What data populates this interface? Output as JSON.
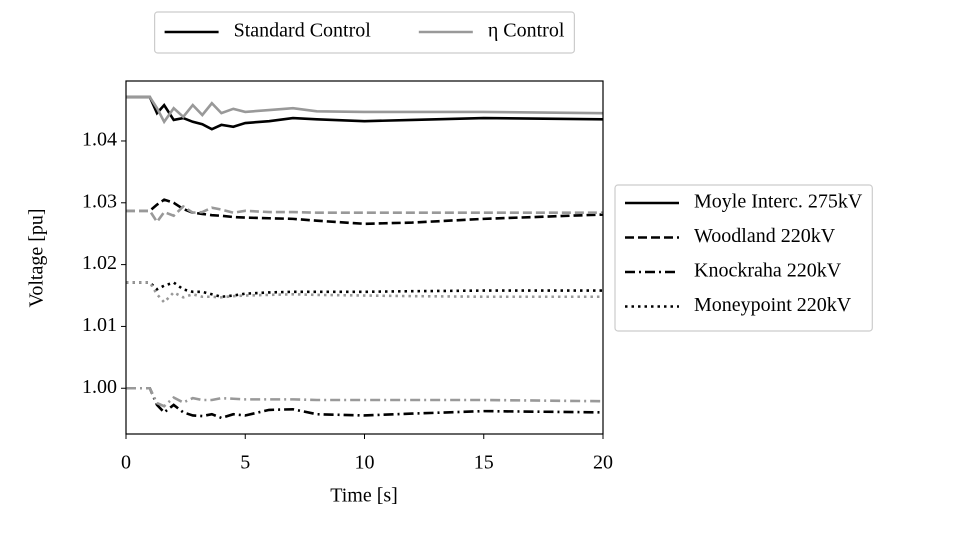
{
  "chart_data": {
    "type": "line",
    "xlabel": "Time [s]",
    "ylabel": "Voltage [pu]",
    "x": [
      0,
      1,
      1.3,
      1.6,
      2.0,
      2.4,
      2.8,
      3.2,
      3.6,
      4.0,
      4.5,
      5,
      6,
      7,
      8,
      10,
      12,
      15,
      20
    ],
    "xlim": [
      0,
      20
    ],
    "xticks": [
      0,
      5,
      10,
      15,
      20
    ],
    "ylim": [
      0.9926,
      1.0497
    ],
    "yticks": [
      {
        "value": 1,
        "label": "1.00"
      },
      1.01,
      1.02,
      1.03,
      1.04
    ],
    "series": [
      {
        "color": "#000000",
        "dash": "solid",
        "values": [
          1.0471,
          1.0471,
          1.0445,
          1.0458,
          1.0434,
          1.0437,
          1.0431,
          1.0427,
          1.0419,
          1.0426,
          1.0423,
          1.0429,
          1.0432,
          1.0437,
          1.0435,
          1.0432,
          1.0434,
          1.0437,
          1.0435
        ]
      },
      {
        "color": "#999999",
        "dash": "solid",
        "values": [
          1.0471,
          1.0471,
          1.0453,
          1.0431,
          1.0453,
          1.0439,
          1.0458,
          1.0442,
          1.0461,
          1.0445,
          1.0452,
          1.0447,
          1.045,
          1.0453,
          1.0448,
          1.0447,
          1.0447,
          1.0447,
          1.0445
        ]
      },
      {
        "color": "#000000",
        "dash": "dashed",
        "values": [
          1.0287,
          1.0287,
          1.0297,
          1.0305,
          1.03,
          1.029,
          1.0284,
          1.0282,
          1.028,
          1.0279,
          1.0277,
          1.0276,
          1.0275,
          1.0274,
          1.0271,
          1.0266,
          1.0268,
          1.0274,
          1.0281
        ]
      },
      {
        "color": "#999999",
        "dash": "dashed",
        "values": [
          1.0287,
          1.0287,
          1.0269,
          1.0285,
          1.0279,
          1.0294,
          1.0284,
          1.0285,
          1.0292,
          1.0289,
          1.0284,
          1.0287,
          1.0285,
          1.0285,
          1.0284,
          1.0284,
          1.0284,
          1.0284,
          1.0284
        ]
      },
      {
        "color": "#000000",
        "dash": "dashdot",
        "values": [
          1.0,
          1.0,
          0.9973,
          0.9961,
          0.9973,
          0.9961,
          0.9956,
          0.9955,
          0.9958,
          0.9952,
          0.9958,
          0.9956,
          0.9965,
          0.9966,
          0.9958,
          0.9956,
          0.9959,
          0.9963,
          0.9961
        ]
      },
      {
        "color": "#999999",
        "dash": "dashdot",
        "values": [
          1.0,
          1.0,
          0.9976,
          0.9971,
          0.9985,
          0.9977,
          0.9984,
          0.9981,
          0.9981,
          0.9984,
          0.9983,
          0.9982,
          0.9982,
          0.9982,
          0.9981,
          0.9981,
          0.9981,
          0.9981,
          0.9979
        ]
      },
      {
        "color": "#000000",
        "dash": "dotted",
        "values": [
          1.0171,
          1.0171,
          1.016,
          1.0166,
          1.0171,
          1.016,
          1.0156,
          1.0156,
          1.0152,
          1.0148,
          1.015,
          1.0153,
          1.0155,
          1.0156,
          1.0156,
          1.0156,
          1.0157,
          1.0158,
          1.0158
        ]
      },
      {
        "color": "#999999",
        "dash": "dotted",
        "values": [
          1.0171,
          1.0171,
          1.0152,
          1.0139,
          1.0155,
          1.0147,
          1.0152,
          1.0148,
          1.0148,
          1.0147,
          1.0149,
          1.015,
          1.0151,
          1.0152,
          1.0151,
          1.015,
          1.0149,
          1.0148,
          1.0148
        ]
      }
    ],
    "legends": [
      {
        "position": "top",
        "entries": [
          {
            "label": "Standard Control",
            "color": "#000000",
            "dash": "solid"
          },
          {
            "label": "η Control",
            "color": "#999999",
            "dash": "solid"
          }
        ]
      },
      {
        "position": "right",
        "entries": [
          {
            "label": "Moyle Interc. 275kV",
            "color": "#000000",
            "dash": "solid"
          },
          {
            "label": "Woodland 220kV",
            "color": "#000000",
            "dash": "dashed"
          },
          {
            "label": "Knockraha 220kV",
            "color": "#000000",
            "dash": "dashdot"
          },
          {
            "label": "Moneypoint 220kV",
            "color": "#000000",
            "dash": "dotted"
          }
        ]
      }
    ]
  }
}
